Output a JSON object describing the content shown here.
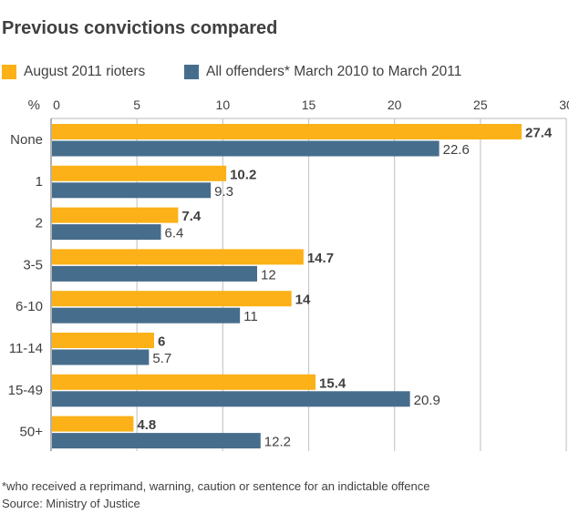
{
  "chart_data": {
    "type": "bar",
    "orientation": "horizontal",
    "title": "Previous convictions compared",
    "xlabel": "%",
    "xlim": [
      0,
      30
    ],
    "xticks": [
      0,
      5,
      10,
      15,
      20,
      25,
      30
    ],
    "grid": true,
    "legend": "top",
    "categories": [
      "None",
      "1",
      "2",
      "3-5",
      "6-10",
      "11-14",
      "15-49",
      "50+"
    ],
    "series": [
      {
        "name": "August 2011 rioters",
        "color": "#fbb117",
        "values": [
          27.4,
          10.2,
          7.4,
          14.7,
          14,
          6,
          15.4,
          4.8
        ]
      },
      {
        "name": "All offenders* March 2010 to March 2011",
        "color": "#476d8c",
        "values": [
          22.6,
          9.3,
          6.4,
          12,
          11,
          5.7,
          20.9,
          12.2
        ]
      }
    ]
  },
  "footnote": "*who received a reprimand, warning, caution or sentence for an indictable offence",
  "source": "Source: Ministry of Justice"
}
